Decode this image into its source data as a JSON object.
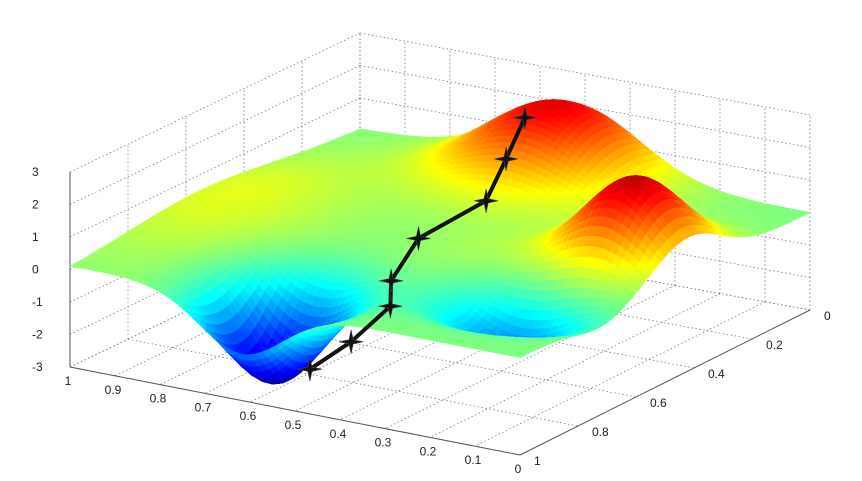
{
  "chart_data": {
    "type": "surface3d",
    "title": "",
    "xlabel": "",
    "ylabel": "",
    "zlabel": "",
    "x_ticks": [
      "0",
      "0.1",
      "0.2",
      "0.3",
      "0.4",
      "0.5",
      "0.6",
      "0.7",
      "0.8",
      "0.9",
      "1"
    ],
    "y_ticks": [
      "0",
      "0.2",
      "0.4",
      "0.6",
      "0.8",
      "1"
    ],
    "z_ticks": [
      "-3",
      "-2",
      "-1",
      "0",
      "1",
      "2",
      "3"
    ],
    "xlim": [
      0,
      1
    ],
    "ylim": [
      0,
      1
    ],
    "zlim": [
      -3,
      3
    ],
    "grid": true,
    "colormap": "jet",
    "surface": {
      "peaks": [
        {
          "x": 0.52,
          "y": 0.08,
          "z": 2.4
        },
        {
          "x": 0.12,
          "y": 0.42,
          "z": 2.6
        }
      ],
      "valleys": [
        {
          "x": 0.62,
          "y": 0.88,
          "z": -3.0
        },
        {
          "x": 0.2,
          "y": 0.72,
          "z": -1.6
        }
      ]
    },
    "path": {
      "marker": "star",
      "color": "#111111",
      "points": [
        {
          "x": 0.55,
          "y": 0.13,
          "z": 2.1
        },
        {
          "x": 0.54,
          "y": 0.21,
          "z": 1.2
        },
        {
          "x": 0.52,
          "y": 0.31,
          "z": 0.4
        },
        {
          "x": 0.58,
          "y": 0.45,
          "z": -0.3
        },
        {
          "x": 0.57,
          "y": 0.56,
          "z": -1.1
        },
        {
          "x": 0.52,
          "y": 0.64,
          "z": -1.4
        },
        {
          "x": 0.53,
          "y": 0.76,
          "z": -2.0
        },
        {
          "x": 0.57,
          "y": 0.84,
          "z": -2.6
        }
      ]
    }
  }
}
